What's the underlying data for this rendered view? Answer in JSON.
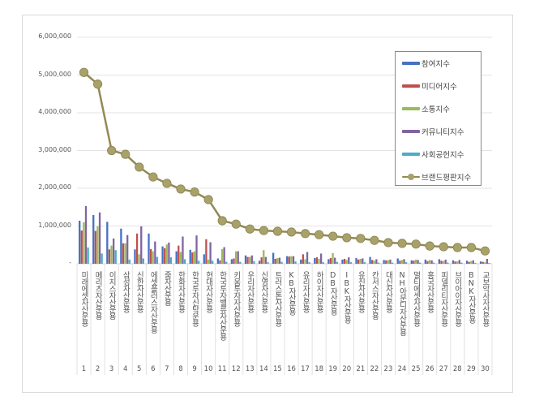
{
  "chart_data": {
    "type": "bar",
    "ylim": [
      0,
      6000000
    ],
    "y_ticks": [
      "-",
      "1,000,000",
      "2,000,000",
      "3,000,000",
      "4,000,000",
      "5,000,000",
      "6,000,000"
    ],
    "grid": true,
    "legend_position": "top-right",
    "categories": [
      "미래에셋자산운용",
      "메리츠자산운용",
      "이지스자산운용",
      "삼성자산운용",
      "신한자산운용",
      "에셋플러스자산운용",
      "줌자산운용",
      "한화자산운용",
      "한국투자신탁운용",
      "현대자산운용",
      "한국투자밸류자산운용",
      "키움투자자산운용",
      "우리자산운용",
      "신영자산운용",
      "트러스톤자산운용",
      "KB자산운용",
      "유리자산운용",
      "하이자산운용",
      "DB자산운용",
      "IBK자산운용",
      "유진자산운용",
      "칸서스자산운용",
      "대신자산운용",
      "NH아문디자산운용",
      "멀티에셋자산운용",
      "흥국자산운용",
      "피델리티자산운용",
      "브이아이자산운용",
      "BNK자산운용",
      "교보악사자산운용"
    ],
    "ranks": [
      "1",
      "2",
      "3",
      "4",
      "5",
      "6",
      "7",
      "8",
      "9",
      "10",
      "11",
      "12",
      "13",
      "14",
      "15",
      "16",
      "17",
      "18",
      "19",
      "20",
      "21",
      "22",
      "23",
      "24",
      "25",
      "26",
      "27",
      "28",
      "29",
      "30"
    ],
    "series": [
      {
        "name": "참여지수",
        "type": "bar",
        "color": "#4472c4",
        "values": [
          1140000,
          1290000,
          1110000,
          930000,
          380000,
          800000,
          460000,
          330000,
          370000,
          250000,
          140000,
          120000,
          220000,
          80000,
          290000,
          200000,
          110000,
          150000,
          120000,
          110000,
          150000,
          180000,
          100000,
          140000,
          90000,
          110000,
          120000,
          90000,
          80000,
          60000
        ]
      },
      {
        "name": "미디어지수",
        "type": "bar",
        "color": "#c0504d",
        "values": [
          880000,
          870000,
          380000,
          540000,
          800000,
          390000,
          410000,
          480000,
          300000,
          650000,
          90000,
          140000,
          180000,
          170000,
          130000,
          190000,
          250000,
          170000,
          150000,
          130000,
          110000,
          100000,
          90000,
          80000,
          80000,
          70000,
          80000,
          60000,
          50000,
          50000
        ]
      },
      {
        "name": "소통지수",
        "type": "bar",
        "color": "#9bbb59",
        "values": [
          1100000,
          990000,
          480000,
          540000,
          250000,
          330000,
          510000,
          310000,
          330000,
          110000,
          390000,
          330000,
          180000,
          360000,
          150000,
          200000,
          120000,
          130000,
          280000,
          100000,
          130000,
          80000,
          90000,
          100000,
          110000,
          100000,
          70000,
          60000,
          70000,
          40000
        ]
      },
      {
        "name": "커뮤니티지수",
        "type": "bar",
        "color": "#8064a2",
        "values": [
          1530000,
          1360000,
          670000,
          760000,
          990000,
          590000,
          560000,
          720000,
          750000,
          570000,
          440000,
          330000,
          220000,
          180000,
          160000,
          200000,
          310000,
          270000,
          160000,
          170000,
          140000,
          120000,
          110000,
          120000,
          100000,
          90000,
          110000,
          100000,
          90000,
          130000
        ]
      },
      {
        "name": "사회공헌지수",
        "type": "bar",
        "color": "#4bacc6",
        "values": [
          430000,
          270000,
          360000,
          110000,
          140000,
          180000,
          170000,
          120000,
          80000,
          80000,
          50000,
          50000,
          70000,
          40000,
          50000,
          60000,
          40000,
          40000,
          50000,
          40000,
          40000,
          30000,
          30000,
          40000,
          30000,
          30000,
          30000,
          30000,
          20000,
          20000
        ]
      },
      {
        "name": "브랜드평판지수",
        "type": "line",
        "color": "#938953",
        "values": [
          5070000,
          4760000,
          3000000,
          2900000,
          2560000,
          2300000,
          2130000,
          1980000,
          1900000,
          1700000,
          1140000,
          1050000,
          920000,
          880000,
          860000,
          840000,
          800000,
          770000,
          730000,
          690000,
          670000,
          620000,
          560000,
          540000,
          520000,
          470000,
          450000,
          430000,
          430000,
          340000
        ]
      }
    ]
  }
}
